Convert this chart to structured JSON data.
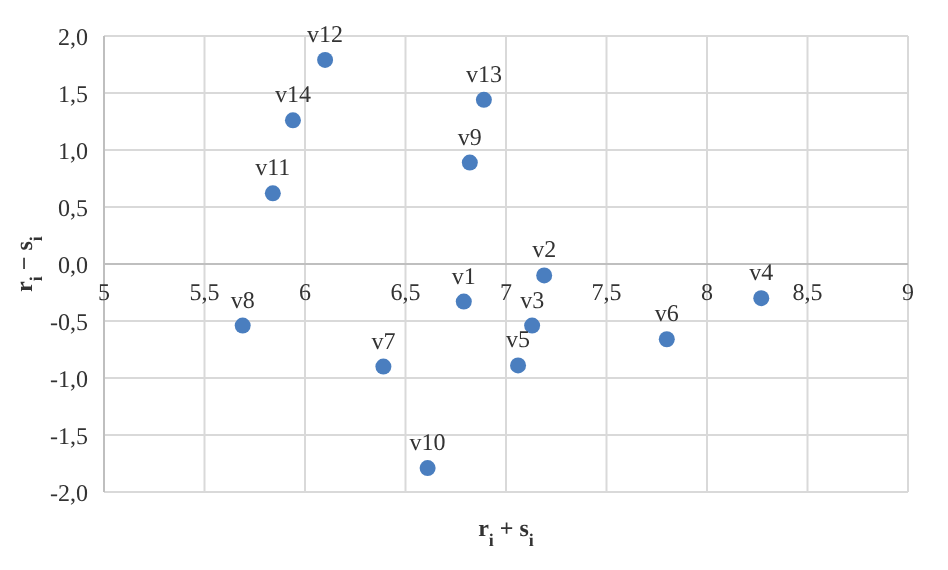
{
  "chart_data": {
    "type": "scatter",
    "xlabel": "r$_{i}$ + s$_{i}$",
    "ylabel": "r$_{i}$ − s$_{i}$",
    "x": [
      6.79,
      7.19,
      7.13,
      8.27,
      7.06,
      7.8,
      6.39,
      5.69,
      6.82,
      6.61,
      5.84,
      6.1,
      6.89,
      5.94
    ],
    "values": [
      -0.33,
      -0.1,
      -0.54,
      -0.3,
      -0.89,
      -0.66,
      -0.9,
      -0.54,
      0.89,
      -1.79,
      0.62,
      1.79,
      1.44,
      1.26
    ],
    "color": "#4a7ebf",
    "marker": "circle",
    "xlim": [
      5,
      9
    ],
    "xticks": [
      5,
      {
        "value": 5.5,
        "label": "5,5"
      },
      6,
      {
        "value": 6.5,
        "label": "6,5"
      },
      7,
      {
        "value": 7.5,
        "label": "7,5"
      },
      8,
      {
        "value": 8.5,
        "label": "8,5"
      },
      9
    ],
    "ylim": [
      -2,
      2
    ],
    "yticks": [
      {
        "value": -2,
        "label": "-2,0"
      },
      {
        "value": -1.5,
        "label": "-1,5"
      },
      {
        "value": -1,
        "label": "-1,0"
      },
      {
        "value": -0.5,
        "label": "-0,5"
      },
      {
        "value": 0,
        "label": "0,0"
      },
      {
        "value": 0.5,
        "label": "0,5"
      },
      {
        "value": 1,
        "label": "1,0"
      },
      {
        "value": 1.5,
        "label": "1,5"
      },
      {
        "value": 2,
        "label": "2,0"
      }
    ],
    "grid": true,
    "legend": false,
    "annotations": [
      {
        "text": "v1",
        "x": 6.79,
        "y": -0.33
      },
      {
        "text": "v2",
        "x": 7.19,
        "y": -0.1
      },
      {
        "text": "v3",
        "x": 7.13,
        "y": -0.54
      },
      {
        "text": "v4",
        "x": 8.27,
        "y": -0.3
      },
      {
        "text": "v5",
        "x": 7.06,
        "y": -0.89
      },
      {
        "text": "v6",
        "x": 7.8,
        "y": -0.66
      },
      {
        "text": "v7",
        "x": 6.39,
        "y": -0.9
      },
      {
        "text": "v8",
        "x": 5.69,
        "y": -0.54
      },
      {
        "text": "v9",
        "x": 6.82,
        "y": 0.89
      },
      {
        "text": "v10",
        "x": 6.61,
        "y": -1.79
      },
      {
        "text": "v11",
        "x": 5.84,
        "y": 0.62
      },
      {
        "text": "v12",
        "x": 6.1,
        "y": 1.79
      },
      {
        "text": "v13",
        "x": 6.89,
        "y": 1.44
      },
      {
        "text": "v14",
        "x": 5.94,
        "y": 1.26
      }
    ]
  }
}
